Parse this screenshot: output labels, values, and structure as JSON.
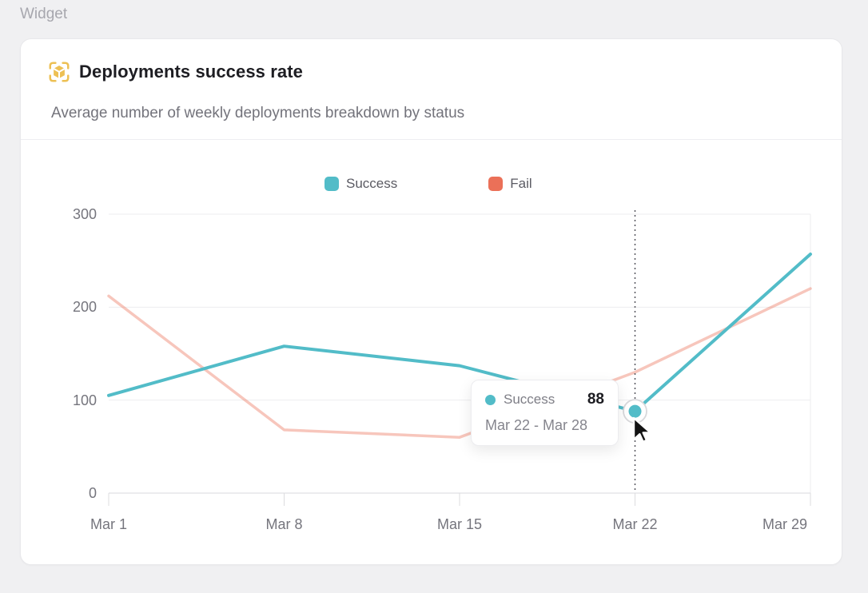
{
  "page": {
    "section_label": "Widget"
  },
  "widget": {
    "title": "Deployments success rate",
    "subtitle": "Average number of weekly deployments breakdown by status",
    "icon": "deployment-package-icon",
    "icon_color": "#edc054"
  },
  "legend": {
    "items": [
      {
        "label": "Success",
        "color": "#52bcc8"
      },
      {
        "label": "Fail",
        "color": "#eb7058"
      }
    ]
  },
  "tooltip": {
    "series": "Success",
    "value": "88",
    "period": "Mar 22 - Mar 28",
    "dot_color": "#52bcc8"
  },
  "chart_data": {
    "type": "line",
    "title": "Deployments success rate",
    "x": [
      "Mar 1",
      "Mar 8",
      "Mar 15",
      "Mar 22",
      "Mar 29"
    ],
    "series": [
      {
        "name": "Success",
        "color": "#52bcc8",
        "values": [
          105,
          158,
          137,
          88,
          257
        ],
        "emphasis": "highlighted"
      },
      {
        "name": "Fail",
        "color": "#eb7058",
        "values": [
          212,
          68,
          60,
          130,
          220
        ],
        "emphasis": "faded"
      }
    ],
    "yticks": [
      0,
      100,
      200,
      300
    ],
    "ylim": [
      0,
      300
    ],
    "grid": "horizontal",
    "legend_position": "top",
    "hover": {
      "category": "Mar 22",
      "series": "Success",
      "value": 88
    }
  }
}
